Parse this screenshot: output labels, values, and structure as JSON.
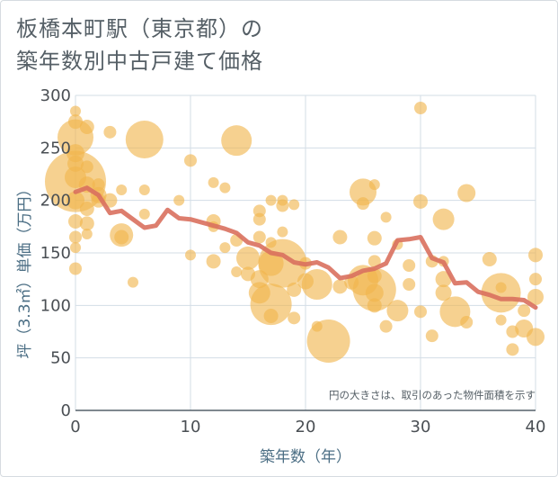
{
  "chart_data": {
    "type": "scatter",
    "title_lines": [
      "板橋本町駅（東京都）の",
      "築年数別中古戸建て価格"
    ],
    "xlabel": "築年数（年）",
    "ylabel": "坪（3.3㎡）単価（万円）",
    "xlim": [
      0,
      40
    ],
    "ylim": [
      0,
      300
    ],
    "xticks": [
      0,
      10,
      20,
      30,
      40
    ],
    "yticks": [
      0,
      50,
      100,
      150,
      200,
      250,
      300
    ],
    "grid": true,
    "note": "円の大きさは、取引のあった物件面積を示す",
    "colors": {
      "bubble": "#f1b44c",
      "line": "#d9705e",
      "grid": "#d3dde6",
      "axis_title": "#4b6e84"
    },
    "bubbles": [
      {
        "x": 0,
        "y": 285,
        "s": 6
      },
      {
        "x": 0,
        "y": 275,
        "s": 8
      },
      {
        "x": 0,
        "y": 260,
        "s": 20
      },
      {
        "x": 0,
        "y": 245,
        "s": 10
      },
      {
        "x": 0,
        "y": 235,
        "s": 9
      },
      {
        "x": 0,
        "y": 222,
        "s": 12
      },
      {
        "x": 0,
        "y": 218,
        "s": 34
      },
      {
        "x": 0,
        "y": 200,
        "s": 10
      },
      {
        "x": 0,
        "y": 180,
        "s": 8
      },
      {
        "x": 0,
        "y": 165,
        "s": 7
      },
      {
        "x": 0,
        "y": 155,
        "s": 6
      },
      {
        "x": 0,
        "y": 135,
        "s": 7
      },
      {
        "x": 1,
        "y": 270,
        "s": 8
      },
      {
        "x": 1,
        "y": 232,
        "s": 7
      },
      {
        "x": 1,
        "y": 215,
        "s": 9
      },
      {
        "x": 1,
        "y": 192,
        "s": 8
      },
      {
        "x": 1,
        "y": 178,
        "s": 8
      },
      {
        "x": 1,
        "y": 168,
        "s": 6
      },
      {
        "x": 2,
        "y": 215,
        "s": 7
      },
      {
        "x": 2,
        "y": 205,
        "s": 9
      },
      {
        "x": 2,
        "y": 200,
        "s": 8
      },
      {
        "x": 3,
        "y": 265,
        "s": 7
      },
      {
        "x": 3,
        "y": 200,
        "s": 8
      },
      {
        "x": 4,
        "y": 210,
        "s": 6
      },
      {
        "x": 4,
        "y": 167,
        "s": 13
      },
      {
        "x": 4,
        "y": 165,
        "s": 8
      },
      {
        "x": 5,
        "y": 122,
        "s": 6
      },
      {
        "x": 6,
        "y": 258,
        "s": 21
      },
      {
        "x": 6,
        "y": 210,
        "s": 6
      },
      {
        "x": 6,
        "y": 187,
        "s": 6
      },
      {
        "x": 9,
        "y": 200,
        "s": 6
      },
      {
        "x": 10,
        "y": 238,
        "s": 7
      },
      {
        "x": 10,
        "y": 148,
        "s": 6
      },
      {
        "x": 12,
        "y": 217,
        "s": 6
      },
      {
        "x": 12,
        "y": 180,
        "s": 8
      },
      {
        "x": 12,
        "y": 175,
        "s": 6
      },
      {
        "x": 12,
        "y": 142,
        "s": 8
      },
      {
        "x": 13,
        "y": 212,
        "s": 6
      },
      {
        "x": 13,
        "y": 155,
        "s": 6
      },
      {
        "x": 14,
        "y": 257,
        "s": 17
      },
      {
        "x": 14,
        "y": 162,
        "s": 7
      },
      {
        "x": 14,
        "y": 132,
        "s": 6
      },
      {
        "x": 15,
        "y": 145,
        "s": 13
      },
      {
        "x": 15,
        "y": 130,
        "s": 8
      },
      {
        "x": 16,
        "y": 190,
        "s": 7
      },
      {
        "x": 16,
        "y": 182,
        "s": 7
      },
      {
        "x": 16,
        "y": 165,
        "s": 7
      },
      {
        "x": 16,
        "y": 125,
        "s": 10
      },
      {
        "x": 16,
        "y": 112,
        "s": 12
      },
      {
        "x": 17,
        "y": 200,
        "s": 6
      },
      {
        "x": 17,
        "y": 160,
        "s": 6
      },
      {
        "x": 17,
        "y": 140,
        "s": 14
      },
      {
        "x": 17,
        "y": 101,
        "s": 23
      },
      {
        "x": 17,
        "y": 90,
        "s": 8
      },
      {
        "x": 18,
        "y": 200,
        "s": 6
      },
      {
        "x": 18,
        "y": 195,
        "s": 7
      },
      {
        "x": 18,
        "y": 170,
        "s": 6
      },
      {
        "x": 18,
        "y": 140,
        "s": 27
      },
      {
        "x": 19,
        "y": 196,
        "s": 6
      },
      {
        "x": 19,
        "y": 115,
        "s": 8
      },
      {
        "x": 19,
        "y": 88,
        "s": 7
      },
      {
        "x": 20,
        "y": 140,
        "s": 7
      },
      {
        "x": 20,
        "y": 123,
        "s": 9
      },
      {
        "x": 21,
        "y": 120,
        "s": 17
      },
      {
        "x": 21,
        "y": 80,
        "s": 6
      },
      {
        "x": 22,
        "y": 66,
        "s": 24
      },
      {
        "x": 23,
        "y": 165,
        "s": 8
      },
      {
        "x": 23,
        "y": 118,
        "s": 8
      },
      {
        "x": 24,
        "y": 122,
        "s": 8
      },
      {
        "x": 25,
        "y": 208,
        "s": 15
      },
      {
        "x": 25,
        "y": 197,
        "s": 7
      },
      {
        "x": 25,
        "y": 124,
        "s": 17
      },
      {
        "x": 26,
        "y": 215,
        "s": 6
      },
      {
        "x": 26,
        "y": 164,
        "s": 8
      },
      {
        "x": 26,
        "y": 142,
        "s": 7
      },
      {
        "x": 26,
        "y": 128,
        "s": 8
      },
      {
        "x": 26,
        "y": 115,
        "s": 24
      },
      {
        "x": 26,
        "y": 112,
        "s": 10
      },
      {
        "x": 26,
        "y": 100,
        "s": 8
      },
      {
        "x": 27,
        "y": 184,
        "s": 6
      },
      {
        "x": 27,
        "y": 80,
        "s": 7
      },
      {
        "x": 28,
        "y": 158,
        "s": 6
      },
      {
        "x": 28,
        "y": 95,
        "s": 12
      },
      {
        "x": 29,
        "y": 138,
        "s": 7
      },
      {
        "x": 29,
        "y": 120,
        "s": 7
      },
      {
        "x": 30,
        "y": 288,
        "s": 7
      },
      {
        "x": 30,
        "y": 199,
        "s": 8
      },
      {
        "x": 30,
        "y": 94,
        "s": 7
      },
      {
        "x": 31,
        "y": 142,
        "s": 7
      },
      {
        "x": 31,
        "y": 71,
        "s": 7
      },
      {
        "x": 32,
        "y": 182,
        "s": 12
      },
      {
        "x": 32,
        "y": 142,
        "s": 6
      },
      {
        "x": 32,
        "y": 125,
        "s": 9
      },
      {
        "x": 32,
        "y": 112,
        "s": 9
      },
      {
        "x": 33,
        "y": 94,
        "s": 17
      },
      {
        "x": 34,
        "y": 207,
        "s": 10
      },
      {
        "x": 34,
        "y": 84,
        "s": 7
      },
      {
        "x": 36,
        "y": 144,
        "s": 8
      },
      {
        "x": 37,
        "y": 112,
        "s": 22
      },
      {
        "x": 37,
        "y": 117,
        "s": 6
      },
      {
        "x": 37,
        "y": 86,
        "s": 6
      },
      {
        "x": 38,
        "y": 75,
        "s": 7
      },
      {
        "x": 38,
        "y": 58,
        "s": 7
      },
      {
        "x": 39,
        "y": 78,
        "s": 10
      },
      {
        "x": 39,
        "y": 95,
        "s": 7
      },
      {
        "x": 40,
        "y": 148,
        "s": 8
      },
      {
        "x": 40,
        "y": 125,
        "s": 7
      },
      {
        "x": 40,
        "y": 108,
        "s": 9
      },
      {
        "x": 40,
        "y": 70,
        "s": 10
      }
    ],
    "trend": {
      "x": [
        0,
        1,
        2,
        3,
        4,
        5,
        6,
        7,
        8,
        9,
        10,
        11,
        12,
        13,
        14,
        15,
        16,
        17,
        18,
        19,
        20,
        21,
        22,
        23,
        24,
        25,
        26,
        27,
        28,
        29,
        30,
        31,
        32,
        33,
        34,
        35,
        36,
        37,
        38,
        39,
        40
      ],
      "y": [
        208,
        212,
        205,
        188,
        190,
        182,
        174,
        176,
        191,
        183,
        182,
        179,
        176,
        173,
        169,
        160,
        157,
        150,
        148,
        141,
        139,
        141,
        136,
        126,
        128,
        133,
        135,
        140,
        162,
        163,
        165,
        145,
        141,
        121,
        122,
        113,
        110,
        106,
        106,
        105,
        98
      ]
    }
  }
}
